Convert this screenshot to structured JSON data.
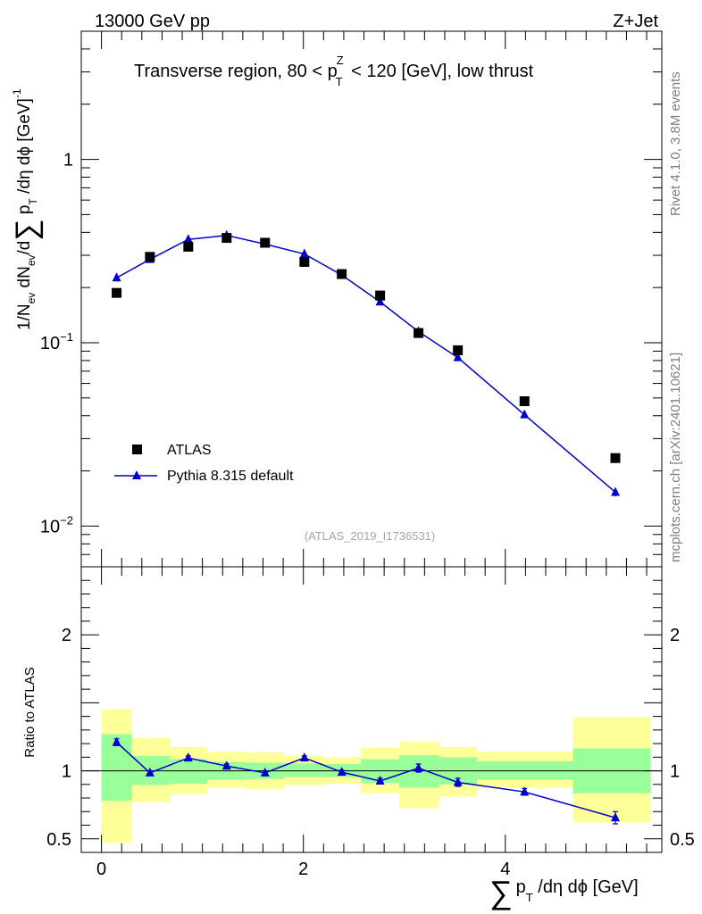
{
  "header": {
    "energy_label": "13000 GeV pp",
    "process_label": "Z+Jet"
  },
  "side_labels": {
    "rivet": "Rivet 4.1.0,  3.8M events",
    "mcplots": "mcplots.cern.ch [arXiv:2401.10621]"
  },
  "chart_data": [
    {
      "type": "scatter",
      "panel": "main",
      "title": "Transverse region, 80 < p_T^Z < 120 [GeV], low thrust",
      "ylabel": "1/N_ev dN_ev/d Σ p_T /dη dφ [GeV]^-1",
      "yscale": "log",
      "ylim": [
        0.006,
        5.0
      ],
      "xlim": [
        -0.2,
        5.55
      ],
      "watermark": "(ATLAS_2019_I1736531)",
      "ytick_labels": [
        "10^-2",
        "10^-1",
        "1"
      ],
      "ytick_values": [
        0.01,
        0.1,
        1
      ],
      "series": [
        {
          "name": "ATLAS",
          "style": "black squares",
          "x": [
            0.15,
            0.48,
            0.86,
            1.24,
            1.62,
            2.01,
            2.38,
            2.76,
            3.14,
            3.53,
            4.19,
            5.09
          ],
          "y": [
            0.187,
            0.294,
            0.334,
            0.373,
            0.351,
            0.276,
            0.237,
            0.181,
            0.113,
            0.091,
            0.048,
            0.0235
          ]
        },
        {
          "name": "Pythia 8.315 default",
          "style": "blue triangles with line",
          "color": "#0000cc",
          "x": [
            0.15,
            0.48,
            0.86,
            1.24,
            1.62,
            2.01,
            2.38,
            2.76,
            3.14,
            3.53,
            4.19,
            5.09
          ],
          "y": [
            0.226,
            0.285,
            0.366,
            0.385,
            0.345,
            0.305,
            0.234,
            0.167,
            0.115,
            0.083,
            0.0405,
            0.0153
          ],
          "yerr": [
            0.004,
            0.004,
            0.004,
            0.004,
            0.004,
            0.004,
            0.003,
            0.003,
            0.002,
            0.002,
            0.001,
            0.0008
          ]
        }
      ]
    },
    {
      "type": "scatter",
      "panel": "ratio",
      "xlabel": "Σ p_T /dη dφ [GeV]",
      "ylabel": "Ratio to ATLAS",
      "ylim": [
        0.4,
        2.5
      ],
      "xlim": [
        -0.2,
        5.55
      ],
      "xtick_labels": [
        "0",
        "2",
        "4"
      ],
      "xtick_values": [
        0,
        2,
        4
      ],
      "ytick_labels": [
        "0.5",
        "1",
        "2"
      ],
      "ytick_values": [
        0.5,
        1,
        2
      ],
      "reference_line": 1,
      "bins": [
        {
          "lo": 0.0,
          "hi": 0.3,
          "inner": [
            0.78,
            1.27
          ],
          "outer": [
            0.47,
            1.45
          ]
        },
        {
          "lo": 0.3,
          "hi": 0.68,
          "inner": [
            0.895,
            1.11
          ],
          "outer": [
            0.77,
            1.24
          ]
        },
        {
          "lo": 0.68,
          "hi": 1.05,
          "inner": [
            0.905,
            1.085
          ],
          "outer": [
            0.83,
            1.175
          ]
        },
        {
          "lo": 1.05,
          "hi": 1.43,
          "inner": [
            0.935,
            1.065
          ],
          "outer": [
            0.875,
            1.14
          ]
        },
        {
          "lo": 1.43,
          "hi": 1.81,
          "inner": [
            0.94,
            1.06
          ],
          "outer": [
            0.865,
            1.135
          ]
        },
        {
          "lo": 1.81,
          "hi": 2.19,
          "inner": [
            0.955,
            1.055
          ],
          "outer": [
            0.895,
            1.11
          ]
        },
        {
          "lo": 2.19,
          "hi": 2.57,
          "inner": [
            0.955,
            1.05
          ],
          "outer": [
            0.905,
            1.1
          ]
        },
        {
          "lo": 2.57,
          "hi": 2.95,
          "inner": [
            0.91,
            1.085
          ],
          "outer": [
            0.835,
            1.17
          ]
        },
        {
          "lo": 2.95,
          "hi": 3.34,
          "inner": [
            0.875,
            1.115
          ],
          "outer": [
            0.725,
            1.215
          ]
        },
        {
          "lo": 3.34,
          "hi": 3.72,
          "inner": [
            0.9,
            1.1
          ],
          "outer": [
            0.81,
            1.175
          ]
        },
        {
          "lo": 3.72,
          "hi": 4.67,
          "inner": [
            0.935,
            1.07
          ],
          "outer": [
            0.875,
            1.14
          ]
        },
        {
          "lo": 4.67,
          "hi": 5.44,
          "inner": [
            0.835,
            1.165
          ],
          "outer": [
            0.62,
            1.395
          ]
        }
      ],
      "series": [
        {
          "name": "Pythia 8.315 default / ATLAS",
          "color": "#0000cc",
          "x": [
            0.15,
            0.48,
            0.86,
            1.24,
            1.62,
            2.01,
            2.38,
            2.76,
            3.14,
            3.53,
            4.19,
            5.09
          ],
          "y": [
            1.21,
            0.985,
            1.095,
            1.035,
            0.985,
            1.095,
            0.99,
            0.925,
            1.02,
            0.915,
            0.845,
            0.655
          ],
          "yerr": [
            0.025,
            0.015,
            0.015,
            0.015,
            0.015,
            0.015,
            0.015,
            0.02,
            0.03,
            0.03,
            0.025,
            0.045
          ]
        }
      ]
    }
  ]
}
